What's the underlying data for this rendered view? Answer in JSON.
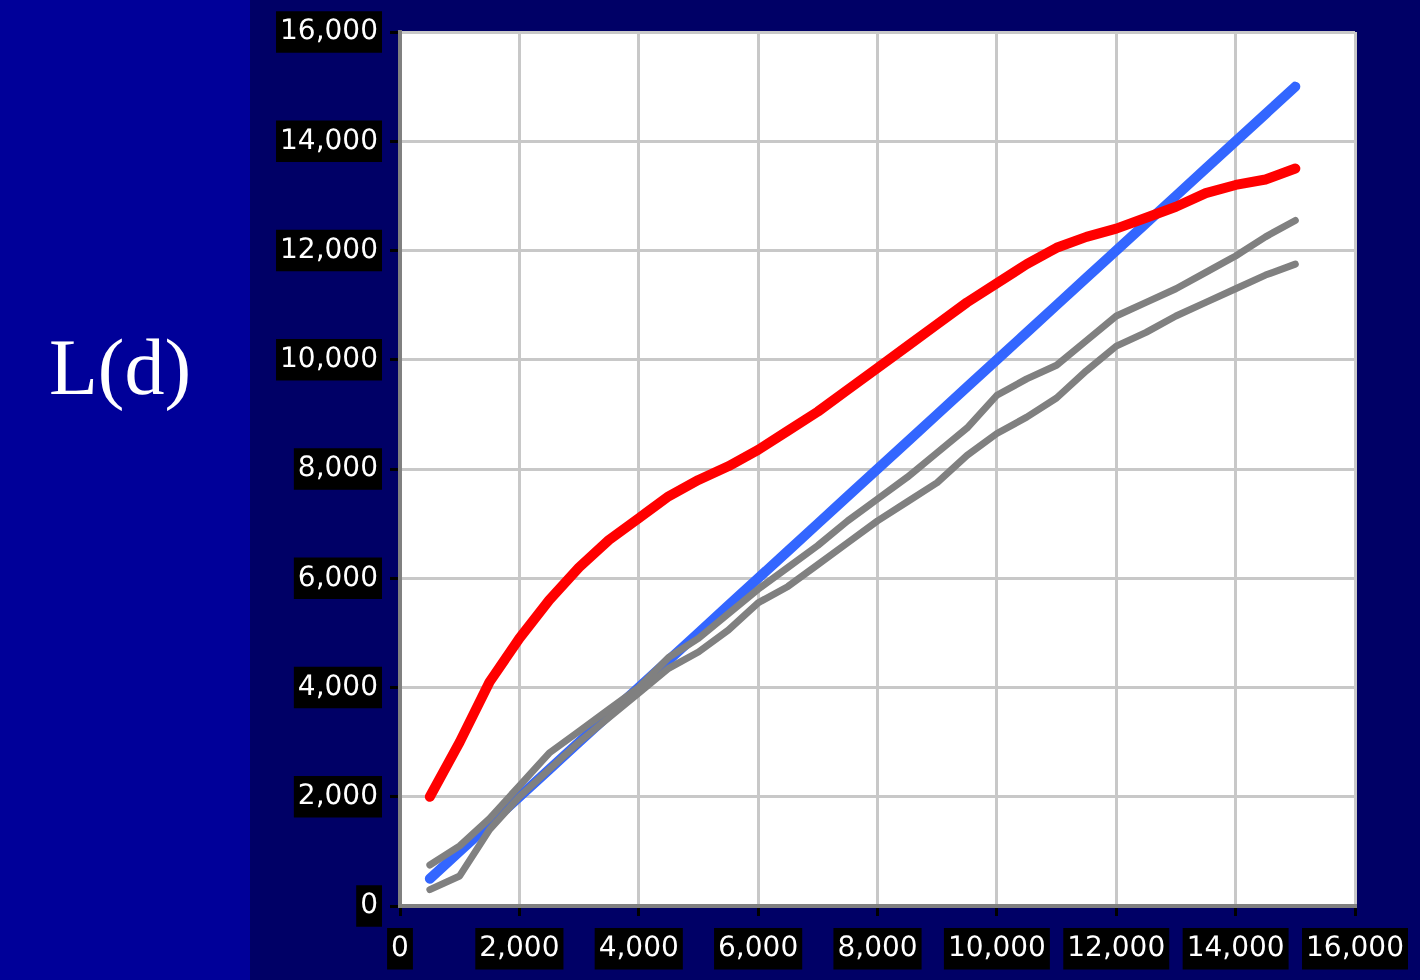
{
  "chart_data": {
    "type": "line",
    "ylabel": "L(d)",
    "x": [
      500,
      1000,
      1500,
      2000,
      2500,
      3000,
      3500,
      4000,
      4500,
      5000,
      5500,
      6000,
      6500,
      7000,
      7500,
      8000,
      8500,
      9000,
      9500,
      10000,
      10500,
      11000,
      11500,
      12000,
      12500,
      13000,
      13500,
      14000,
      14500,
      15000
    ],
    "series": [
      {
        "color": "#808080",
        "values": [
          750,
          1100,
          1600,
          2200,
          2800,
          3200,
          3600,
          4000,
          4550,
          4900,
          5350,
          5800,
          6200,
          6600,
          7050,
          7450,
          7850,
          8300,
          8750,
          9350,
          9650,
          9900,
          10350,
          10800,
          11050,
          11300,
          11600,
          11900,
          12250,
          12550
        ]
      },
      {
        "color": "#808080",
        "values": [
          300,
          550,
          1400,
          2000,
          2500,
          3000,
          3450,
          3900,
          4350,
          4650,
          5050,
          5550,
          5850,
          6250,
          6650,
          7050,
          7400,
          7750,
          8250,
          8650,
          8950,
          9300,
          9800,
          10250,
          10500,
          10800,
          11050,
          11300,
          11550,
          11750
        ]
      },
      {
        "color": "#ff0000",
        "values": [
          2000,
          3000,
          4100,
          4900,
          5600,
          6200,
          6700,
          7100,
          7500,
          7800,
          8050,
          8350,
          8700,
          9050,
          9450,
          9850,
          10250,
          10650,
          11050,
          11400,
          11750,
          12050,
          12250,
          12400,
          12600,
          12800,
          13050,
          13200,
          13300,
          13500
        ]
      },
      {
        "color": "#3366ff",
        "values": [
          500,
          1000,
          1500,
          2000,
          2500,
          3000,
          3500,
          4000,
          4500,
          5000,
          5500,
          6000,
          6500,
          7000,
          7500,
          8000,
          8500,
          9000,
          9500,
          10000,
          10500,
          11000,
          11500,
          12000,
          12500,
          13000,
          13500,
          14000,
          14500,
          15000
        ]
      }
    ],
    "xlim": [
      0,
      16000
    ],
    "xticks": [
      {
        "value": 0,
        "label": "0"
      },
      {
        "value": 2000,
        "label": "2,000"
      },
      {
        "value": 4000,
        "label": "4,000"
      },
      {
        "value": 6000,
        "label": "6,000"
      },
      {
        "value": 8000,
        "label": "8,000"
      },
      {
        "value": 10000,
        "label": "10,000"
      },
      {
        "value": 12000,
        "label": "12,000"
      },
      {
        "value": 14000,
        "label": "14,000"
      },
      {
        "value": 16000,
        "label": "16,000"
      }
    ],
    "ylim": [
      0,
      16000
    ],
    "yticks": [
      {
        "value": 0,
        "label": "0"
      },
      {
        "value": 2000,
        "label": "2,000"
      },
      {
        "value": 4000,
        "label": "4,000"
      },
      {
        "value": 6000,
        "label": "6,000"
      },
      {
        "value": 8000,
        "label": "8,000"
      },
      {
        "value": 10000,
        "label": "10,000"
      },
      {
        "value": 12000,
        "label": "12,000"
      },
      {
        "value": 14000,
        "label": "14,000"
      },
      {
        "value": 16000,
        "label": "16,000"
      }
    ],
    "grid": true,
    "legend": false,
    "marker": "none",
    "line_style": "solid"
  }
}
